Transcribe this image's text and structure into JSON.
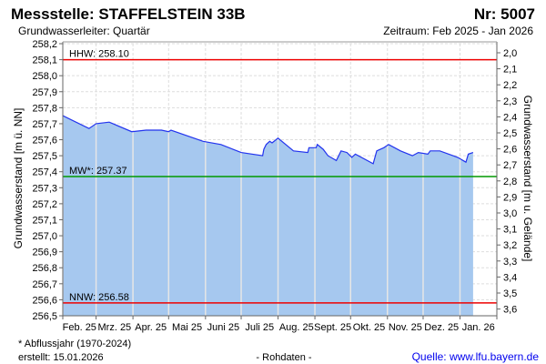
{
  "header": {
    "title": "Messstelle: STAFFELSTEIN 33B",
    "number": "Nr: 5007",
    "aquifer": "Grundwasserleiter: Quartär",
    "period": "Zeitraum: Feb 2025 - Jan 2026"
  },
  "footer": {
    "note": "* Abflussjahr (1970-2024)",
    "created": "erstellt:  15.01.2026",
    "raw": "- Rohdaten -",
    "source": "Quelle: www.lfu.bayern.de"
  },
  "chart_data": {
    "type": "area",
    "title": "Messstelle: STAFFELSTEIN 33B",
    "ylabel": "Grundwasserstand [m ü. NN]",
    "y2label": "Grundwasserstand [m u. Gelände]",
    "ylim": [
      256.5,
      258.2
    ],
    "y2lim": [
      2.0,
      3.6
    ],
    "yticks": [
      "258,2",
      "258,1",
      "258,0",
      "257,9",
      "257,8",
      "257,7",
      "257,6",
      "257,5",
      "257,4",
      "257,3",
      "257,2",
      "257,1",
      "257,0",
      "256,9",
      "256,8",
      "256,7",
      "256,6",
      "256,5"
    ],
    "y2ticks": [
      "2,0",
      "2,1",
      "2,2",
      "2,3",
      "2,4",
      "2,5",
      "2,6",
      "2,7",
      "2,8",
      "2,9",
      "3,0",
      "3,1",
      "3,2",
      "3,3",
      "3,4",
      "3,5",
      "3,6"
    ],
    "xlim": [
      0,
      365
    ],
    "month_starts": [
      0,
      28,
      59,
      89,
      120,
      150,
      181,
      212,
      242,
      273,
      303,
      334,
      365
    ],
    "xticks": [
      "Feb. 25",
      "Mrz. 25",
      "Apr. 25",
      "Mai 25",
      "Juni 25",
      "Juli 25",
      "Aug. 25",
      "Sept. 25",
      "Okt. 25",
      "Nov. 25",
      "Dez. 25",
      "Jan. 26"
    ],
    "grid": true,
    "reference_lines": [
      {
        "label": "HHW: 258.10",
        "value": 258.1,
        "color": "#ee0000"
      },
      {
        "label": "MW*: 257.37",
        "value": 257.37,
        "color": "#009900"
      },
      {
        "label": "NNW: 256.58",
        "value": 256.58,
        "color": "#ee0000"
      }
    ],
    "series": [
      {
        "line_color": "#2233ee",
        "fill_color": "#a6c8ef",
        "x": [
          0,
          22,
          28,
          39,
          58,
          70,
          83,
          89,
          91,
          118,
          133,
          150,
          168,
          169,
          171,
          174,
          176,
          181,
          194,
          206,
          207,
          213,
          214,
          219,
          223,
          230,
          234,
          239,
          243,
          246,
          261,
          264,
          270,
          274,
          284,
          294,
          299,
          307,
          309,
          317,
          332,
          339,
          341,
          345
        ],
        "y": [
          257.75,
          257.67,
          257.7,
          257.71,
          257.65,
          257.66,
          257.66,
          257.65,
          257.66,
          257.59,
          257.57,
          257.52,
          257.5,
          257.54,
          257.57,
          257.59,
          257.58,
          257.61,
          257.53,
          257.52,
          257.55,
          257.55,
          257.57,
          257.54,
          257.5,
          257.47,
          257.53,
          257.52,
          257.49,
          257.51,
          257.45,
          257.53,
          257.55,
          257.57,
          257.53,
          257.5,
          257.52,
          257.51,
          257.53,
          257.53,
          257.49,
          257.46,
          257.51,
          257.52
        ]
      }
    ]
  }
}
